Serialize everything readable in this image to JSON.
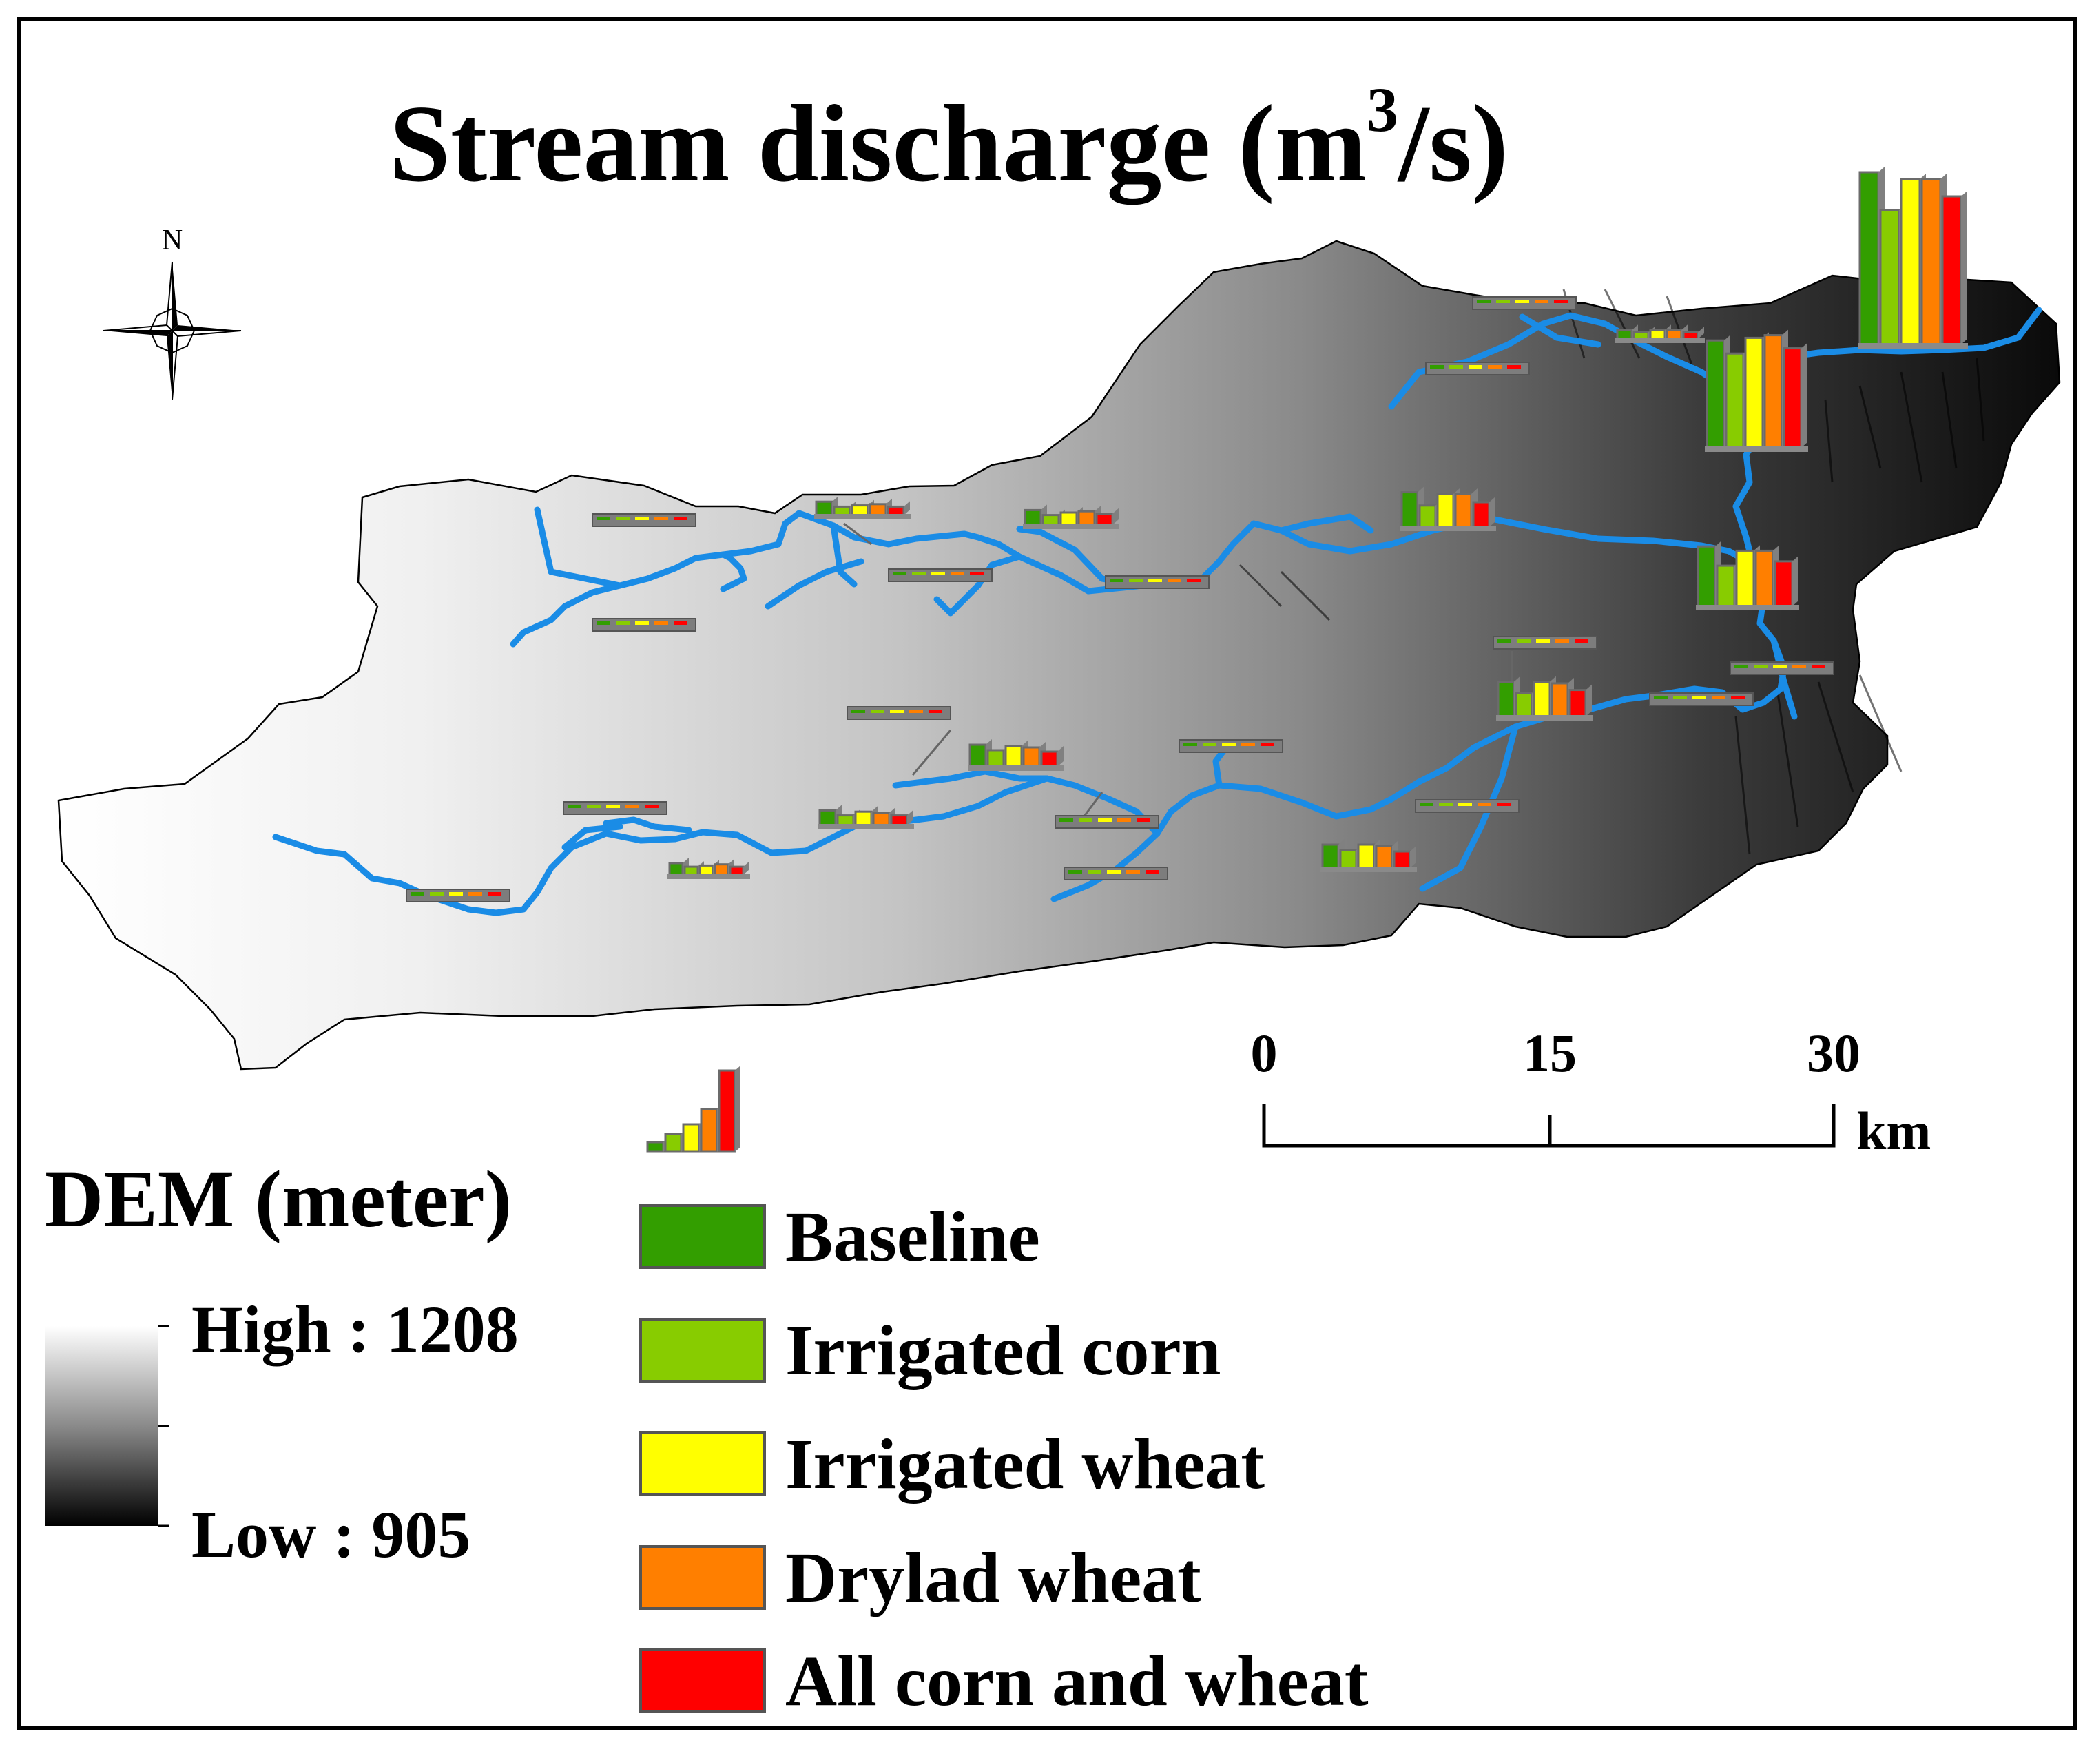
{
  "title": {
    "text": "Stream discharge (m",
    "sup": "3",
    "tail": "/s)"
  },
  "north_arrow": {
    "label": "N",
    "icon": "compass-rose-icon"
  },
  "dem_legend": {
    "title": "DEM (meter)",
    "high_label": "High : 1208",
    "low_label": "Low : 905"
  },
  "scale_bar": {
    "ticks": [
      "0",
      "15",
      "30"
    ],
    "unit": "km"
  },
  "legend": {
    "icon": "bar-chart-symbol-icon",
    "items": [
      {
        "label": "Baseline",
        "color": "#339e00"
      },
      {
        "label": "Irrigated corn",
        "color": "#88cc00"
      },
      {
        "label": "Irrigated wheat",
        "color": "#ffff00"
      },
      {
        "label": "Drylad wheat",
        "color": "#ff7f00"
      },
      {
        "label": "All corn and wheat",
        "color": "#ff0000"
      }
    ]
  },
  "colors": {
    "river": "#1a8ce6",
    "dem_high": "#ffffff",
    "dem_low": "#000000",
    "outline": "#000000"
  },
  "chart_data": {
    "type": "bar",
    "title": "Stream discharge (m3/s)",
    "series_names": [
      "Baseline",
      "Irrigated corn",
      "Irrigated wheat",
      "Drylad wheat",
      "All corn and wheat"
    ],
    "note": "Small bar-chart symbols at stream gauge locations; values are relative symbol heights (unitless).",
    "stations": [
      {
        "id": "outlet",
        "values": [
          1.0,
          0.78,
          0.96,
          0.96,
          0.86
        ]
      },
      {
        "id": "east-upper",
        "values": [
          0.82,
          0.72,
          0.84,
          0.86,
          0.76
        ]
      },
      {
        "id": "east-middle",
        "values": [
          0.56,
          0.38,
          0.52,
          0.52,
          0.42
        ]
      },
      {
        "id": "east-lower",
        "values": [
          0.42,
          0.28,
          0.42,
          0.4,
          0.32
        ]
      },
      {
        "id": "north-branch",
        "values": [
          0.16,
          0.12,
          0.16,
          0.16,
          0.12
        ]
      },
      {
        "id": "central-main",
        "values": [
          0.42,
          0.26,
          0.4,
          0.4,
          0.3
        ]
      },
      {
        "id": "southeast",
        "values": [
          0.34,
          0.26,
          0.34,
          0.32,
          0.24
        ]
      },
      {
        "id": "south-main",
        "values": [
          0.32,
          0.24,
          0.3,
          0.28,
          0.22
        ]
      },
      {
        "id": "central-trib",
        "values": [
          0.24,
          0.16,
          0.2,
          0.22,
          0.18
        ]
      },
      {
        "id": "north-central",
        "values": [
          0.22,
          0.14,
          0.16,
          0.18,
          0.14
        ]
      },
      {
        "id": "south-central",
        "values": [
          0.24,
          0.16,
          0.22,
          0.2,
          0.16
        ]
      },
      {
        "id": "southwest",
        "values": [
          0.2,
          0.14,
          0.16,
          0.18,
          0.14
        ]
      }
    ]
  }
}
